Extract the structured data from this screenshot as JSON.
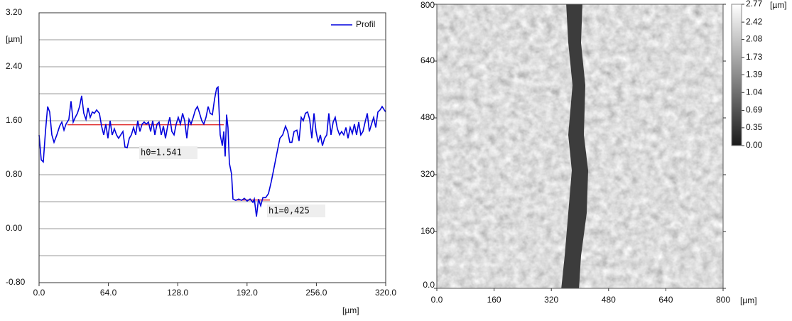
{
  "chart_data": [
    {
      "type": "line",
      "xlabel": "[µm]",
      "ylabel": "[µm]",
      "xlim": [
        0,
        320
      ],
      "ylim": [
        -0.8,
        3.2
      ],
      "xticks": [
        {
          "value": 0,
          "label": "0.0"
        },
        {
          "value": 64,
          "label": "64.0"
        },
        {
          "value": 128,
          "label": "128.0"
        },
        {
          "value": 192,
          "label": "192.0"
        },
        {
          "value": 256,
          "label": "256.0"
        },
        {
          "value": 320,
          "label": "320.0"
        }
      ],
      "yticks": [
        {
          "value": -0.8,
          "label": "-0.80"
        },
        {
          "value": 0,
          "label": "0.00"
        },
        {
          "value": 0.8,
          "label": "0.80"
        },
        {
          "value": 1.6,
          "label": "1.60"
        },
        {
          "value": 2.4,
          "label": "2.40"
        },
        {
          "value": 3.2,
          "label": "3.20"
        }
      ],
      "ygrid_minor": [
        -0.4,
        0.4,
        1.2,
        2.0,
        2.8
      ],
      "grid": true,
      "legend": "upper right",
      "x": [
        0,
        2.0,
        3.9,
        5.9,
        7.9,
        9.8,
        11.8,
        13.8,
        16.4,
        19.0,
        21.0,
        23.0,
        24.9,
        27.5,
        29.5,
        31.5,
        33.4,
        35.4,
        37.4,
        39.3,
        41.3,
        43.3,
        45.2,
        47.2,
        49.2,
        51.1,
        53.1,
        55.7,
        57.7,
        59.7,
        61.6,
        63.6,
        65.6,
        67.5,
        69.5,
        71.5,
        73.4,
        75.4,
        77.4,
        79.3,
        81.3,
        83.3,
        85.2,
        87.2,
        89.2,
        91.1,
        93.1,
        95.1,
        97.0,
        99.0,
        101.0,
        103.0,
        104.9,
        106.9,
        108.9,
        110.8,
        112.8,
        114.8,
        116.7,
        118.7,
        120.7,
        122.6,
        124.6,
        126.6,
        128.5,
        130.5,
        132.5,
        134.4,
        136.4,
        138.4,
        140.3,
        142.3,
        144.3,
        146.2,
        148.2,
        150.2,
        152.1,
        154.1,
        156.1,
        158.0,
        160.0,
        162.0,
        163.9,
        165.2,
        167.2,
        169.2,
        170.5,
        171.8,
        173.1,
        174.4,
        175.7,
        177.7,
        179.0,
        181.6,
        184.3,
        186.9,
        189.5,
        192.1,
        194.8,
        197.4,
        198.7,
        200.7,
        202.6,
        204.6,
        206.6,
        209.2,
        211.8,
        214.4,
        217.0,
        219.7,
        222.3,
        224.9,
        227.5,
        229.5,
        231.5,
        233.4,
        235.4,
        238.0,
        240.0,
        242.0,
        243.9,
        245.9,
        247.9,
        249.8,
        251.8,
        253.8,
        255.7,
        257.7,
        259.7,
        261.6,
        263.6,
        265.6,
        267.5,
        269.5,
        271.5,
        273.4,
        275.4,
        277.4,
        279.3,
        281.3,
        283.3,
        285.2,
        287.2,
        289.2,
        291.1,
        293.1,
        295.1,
        297.0,
        299.0,
        301.0,
        303.0,
        304.9,
        306.9,
        308.9,
        310.8,
        312.8,
        314.8,
        316.7,
        318.7,
        320
      ],
      "series": [
        {
          "name": "Profil",
          "color": "#0000dd",
          "values": [
            1.39,
            1.02,
            0.99,
            1.44,
            1.81,
            1.73,
            1.39,
            1.28,
            1.39,
            1.52,
            1.58,
            1.46,
            1.55,
            1.62,
            1.89,
            1.58,
            1.65,
            1.71,
            1.81,
            1.97,
            1.71,
            1.62,
            1.79,
            1.65,
            1.73,
            1.71,
            1.76,
            1.71,
            1.52,
            1.39,
            1.55,
            1.34,
            1.6,
            1.39,
            1.48,
            1.39,
            1.34,
            1.39,
            1.44,
            1.21,
            1.2,
            1.34,
            1.39,
            1.5,
            1.39,
            1.6,
            1.44,
            1.55,
            1.58,
            1.55,
            1.58,
            1.44,
            1.6,
            1.39,
            1.55,
            1.58,
            1.39,
            1.52,
            1.34,
            1.52,
            1.65,
            1.44,
            1.39,
            1.55,
            1.65,
            1.55,
            1.71,
            1.6,
            1.34,
            1.62,
            1.55,
            1.65,
            1.76,
            1.81,
            1.71,
            1.6,
            1.55,
            1.65,
            1.81,
            1.71,
            1.69,
            1.92,
            2.08,
            2.1,
            1.39,
            1.23,
            1.44,
            1.07,
            1.69,
            1.5,
            0.97,
            0.81,
            0.44,
            0.42,
            0.44,
            0.42,
            0.45,
            0.41,
            0.44,
            0.39,
            0.44,
            0.18,
            0.44,
            0.34,
            0.46,
            0.46,
            0.52,
            0.7,
            0.91,
            1.13,
            1.34,
            1.39,
            1.52,
            1.44,
            1.28,
            1.28,
            1.44,
            1.46,
            1.3,
            1.65,
            1.6,
            1.71,
            1.73,
            1.62,
            1.34,
            1.71,
            1.44,
            1.28,
            1.39,
            1.23,
            1.34,
            1.39,
            1.71,
            1.39,
            1.58,
            1.65,
            1.48,
            1.39,
            1.44,
            1.39,
            1.5,
            1.34,
            1.5,
            1.41,
            1.55,
            1.39,
            1.58,
            1.39,
            1.44,
            1.58,
            1.71,
            1.44,
            1.55,
            1.65,
            1.5,
            1.73,
            1.76,
            1.81,
            1.76,
            1.73
          ]
        }
      ],
      "annotations": [
        {
          "text": "h0=1.541",
          "y": 1.541,
          "x": [
            26.2,
            170.5
          ],
          "color": "#e03030"
        },
        {
          "text": "h1=0,425",
          "y": 0.425,
          "x": [
            180.3,
            213.1
          ],
          "color": "#e03030"
        }
      ]
    },
    {
      "type": "image",
      "xlabel": "[µm]",
      "colorbar_label": "[µm]",
      "xlim": [
        0,
        800
      ],
      "ylim": [
        0,
        800
      ],
      "xticks": [
        {
          "value": 0,
          "label": "0.0"
        },
        160,
        320,
        480,
        640,
        800
      ],
      "yticks": [
        {
          "value": 0,
          "label": "0.0"
        },
        160,
        320,
        480,
        640,
        800
      ],
      "clim": [
        0,
        2.77
      ],
      "cticks": [
        2.77,
        2.42,
        2.08,
        1.73,
        1.39,
        1.04,
        0.69,
        0.35,
        {
          "value": 0,
          "label": "0.00"
        }
      ]
    }
  ]
}
